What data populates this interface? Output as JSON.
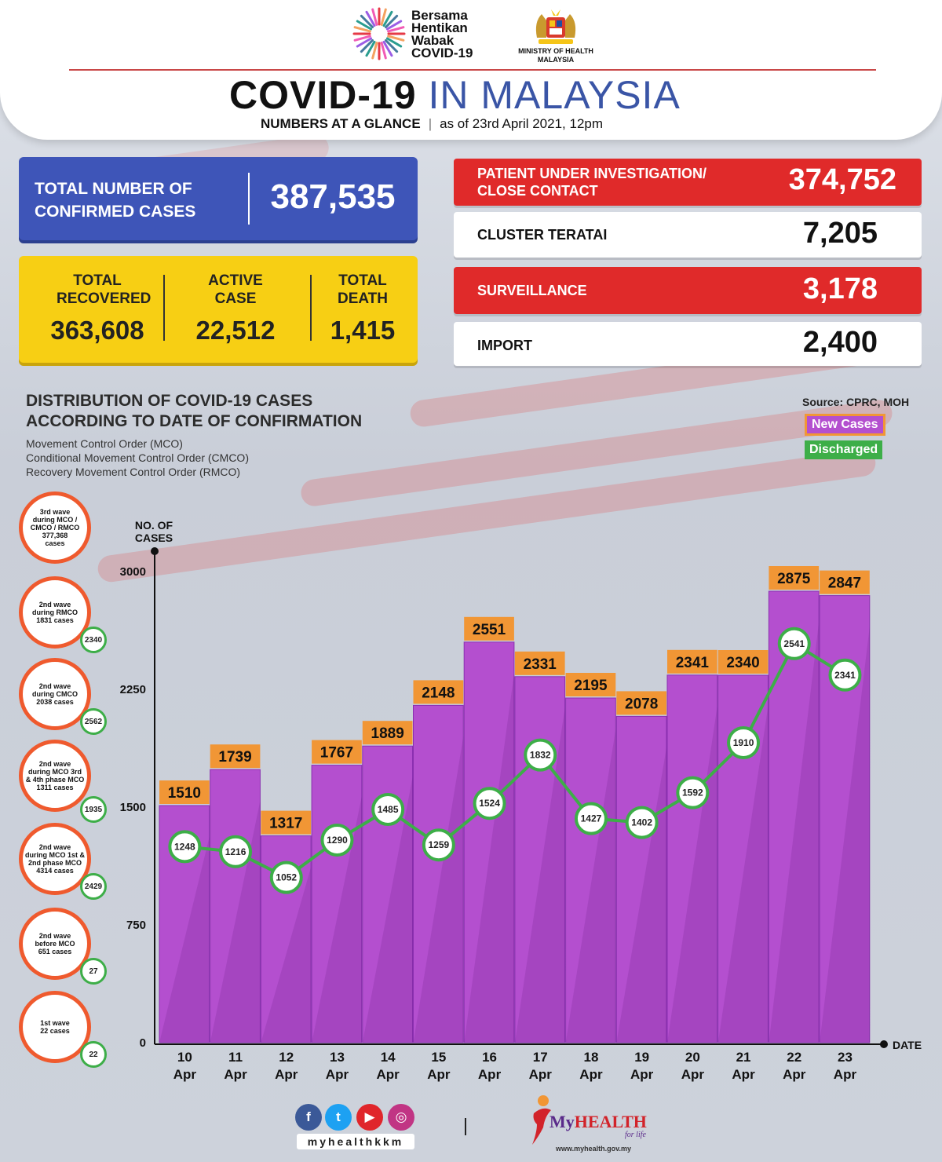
{
  "header": {
    "campaign": [
      "Bersama",
      "Hentikan",
      "Wabak",
      "COVID-19"
    ],
    "ministry": "MINISTRY OF HEALTH MALAYSIA",
    "title_bold": "COVID-19",
    "title_light": " IN MALAYSIA",
    "subtitle_bold": "NUMBERS AT A GLANCE",
    "subtitle_date": "as of 23rd April 2021, 12pm"
  },
  "stats": {
    "confirmed_label": "TOTAL NUMBER OF CONFIRMED CASES",
    "confirmed_value": "387,535",
    "recovered_label": "TOTAL RECOVERED",
    "recovered_value": "363,608",
    "active_label": "ACTIVE CASE",
    "active_value": "22,512",
    "death_label": "TOTAL DEATH",
    "death_value": "1,415"
  },
  "clusters": [
    {
      "label": "PATIENT UNDER INVESTIGATION/ CLOSE CONTACT",
      "value": "374,752",
      "color": "#e02a2a"
    },
    {
      "label": "CLUSTER TERATAI",
      "value": "7,205",
      "color": "#ffffff"
    },
    {
      "label": "SURVEILLANCE",
      "value": "3,178",
      "color": "#e02a2a"
    },
    {
      "label": "IMPORT",
      "value": "2,400",
      "color": "#ffffff"
    }
  ],
  "distribution": {
    "title_line1": "DISTRIBUTION OF COVID-19 CASES",
    "title_line2": "ACCORDING TO DATE OF CONFIRMATION",
    "mco": "Movement Control Order (MCO)",
    "cmco": "Conditional Movement Control Order (CMCO)",
    "rmco": "Recovery Movement Control Order (RMCO)",
    "source": "Source: CPRC, MOH",
    "legend_new": "New Cases",
    "legend_discharged": "Discharged"
  },
  "waves": [
    {
      "text": "3rd wave\nduring MCO /\nCMCO / RMCO\n377,368\ncases",
      "badge": ""
    },
    {
      "text": "2nd wave\nduring RMCO\n1831 cases",
      "badge": "2340"
    },
    {
      "text": "2nd wave\nduring CMCO\n2038 cases",
      "badge": "2562"
    },
    {
      "text": "2nd wave\nduring MCO 3rd\n& 4th phase MCO\n1311 cases",
      "badge": "1935"
    },
    {
      "text": "2nd wave\nduring MCO 1st &\n2nd phase MCO\n4314 cases",
      "badge": "2429"
    },
    {
      "text": "2nd wave\nbefore MCO\n651 cases",
      "badge": "27"
    },
    {
      "text": "1st wave\n22 cases",
      "badge": "22"
    }
  ],
  "chart_data": {
    "type": "bar",
    "ylabel": "NO. OF CASES",
    "xlabel": "DATE",
    "ylim": [
      0,
      3000
    ],
    "yticks": [
      0,
      750,
      1500,
      2250,
      3000
    ],
    "categories": [
      "10 Apr",
      "11 Apr",
      "12 Apr",
      "13 Apr",
      "14 Apr",
      "15 Apr",
      "16 Apr",
      "17 Apr",
      "18 Apr",
      "19 Apr",
      "20 Apr",
      "21 Apr",
      "22 Apr",
      "23 Apr"
    ],
    "series": [
      {
        "name": "New Cases",
        "type": "bar",
        "color": "#b44fcf",
        "values": [
          1510,
          1739,
          1317,
          1767,
          1889,
          2148,
          2551,
          2331,
          2195,
          2078,
          2341,
          2340,
          2875,
          2847
        ]
      },
      {
        "name": "Discharged",
        "type": "line",
        "color": "#3dae48",
        "values": [
          1248,
          1216,
          1052,
          1290,
          1485,
          1259,
          1524,
          1832,
          1427,
          1402,
          1592,
          1910,
          2541,
          2341
        ]
      }
    ]
  },
  "footer": {
    "social": [
      "f",
      "t",
      "▶",
      "◎"
    ],
    "handle": "myhealthkkm",
    "brand_my": "My",
    "brand_health": "HEALTH",
    "tagline": "for life",
    "url": "www.myhealth.gov.my"
  }
}
